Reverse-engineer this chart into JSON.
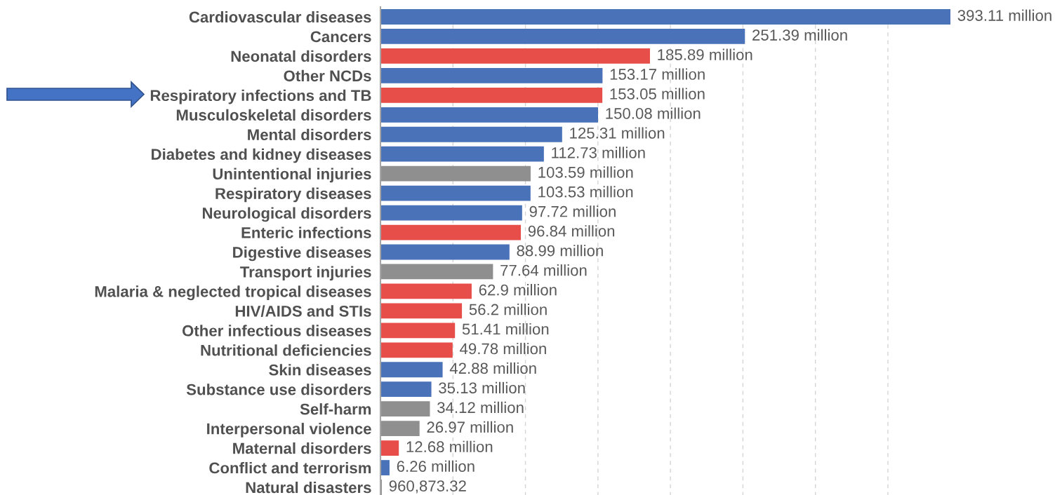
{
  "chart_data": {
    "type": "bar",
    "orientation": "horizontal",
    "categories": [
      "Cardiovascular diseases",
      "Cancers",
      "Neonatal disorders",
      "Other NCDs",
      "Respiratory infections and TB",
      "Musculoskeletal disorders",
      "Mental disorders",
      "Diabetes and kidney diseases",
      "Unintentional injuries",
      "Respiratory diseases",
      "Neurological disorders",
      "Enteric infections",
      "Digestive diseases",
      "Transport injuries",
      "Malaria & neglected tropical diseases",
      "HIV/AIDS and STIs",
      "Other infectious diseases",
      "Nutritional deficiencies",
      "Skin diseases",
      "Substance use disorders",
      "Self-harm",
      "Interpersonal violence",
      "Maternal disorders",
      "Conflict and terrorism",
      "Natural disasters"
    ],
    "values": [
      393110000,
      251390000,
      185890000,
      153170000,
      153050000,
      150080000,
      125310000,
      112730000,
      103590000,
      103530000,
      97720000,
      96840000,
      88990000,
      77640000,
      62900000,
      56200000,
      51410000,
      49780000,
      42880000,
      35130000,
      34120000,
      26970000,
      12680000,
      6260000,
      960873.32
    ],
    "colors": [
      "#4a72b8",
      "#4a72b8",
      "#e84e49",
      "#4a72b8",
      "#e84e49",
      "#4a72b8",
      "#4a72b8",
      "#4a72b8",
      "#8f8f8f",
      "#4a72b8",
      "#4a72b8",
      "#e84e49",
      "#4a72b8",
      "#8f8f8f",
      "#e84e49",
      "#e84e49",
      "#e84e49",
      "#e84e49",
      "#4a72b8",
      "#4a72b8",
      "#8f8f8f",
      "#8f8f8f",
      "#e84e49",
      "#4a72b8",
      "#8f8f8f"
    ],
    "value_labels": [
      "393.11 million",
      "251.39 million",
      "185.89 million",
      "153.17 million",
      "153.05 million",
      "150.08 million",
      "125.31 million",
      "112.73 million",
      "103.59 million",
      "103.53 million",
      "97.72 million",
      "96.84 million",
      "88.99 million",
      "77.64 million",
      "62.9 million",
      "56.2 million",
      "51.41 million",
      "49.78 million",
      "42.88 million",
      "35.13 million",
      "34.12 million",
      "26.97 million",
      "12.68 million",
      "6.26 million",
      "960,873.32"
    ],
    "xticks": [
      {
        "value": 50000000,
        "label": null
      },
      {
        "value": 100000000,
        "label": null
      },
      {
        "value": 150000000,
        "label": null
      },
      {
        "value": 200000000,
        "label": null
      },
      {
        "value": 250000000,
        "label": null
      },
      {
        "value": 300000000,
        "label": null
      },
      {
        "value": 350000000,
        "label": null
      }
    ],
    "grid": "x",
    "tick_labels": "y"
  }
}
